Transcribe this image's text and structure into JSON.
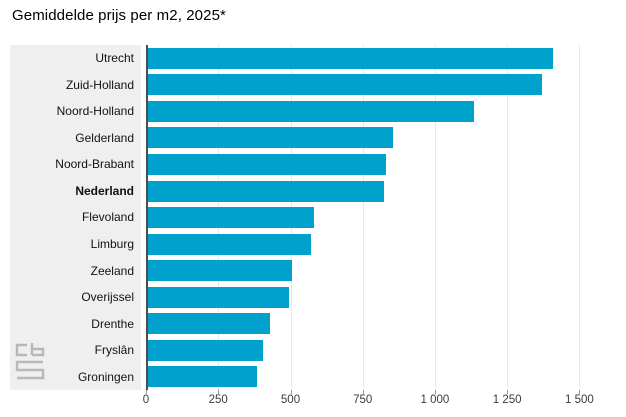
{
  "title": "Gemiddelde prijs per m2, 2025*",
  "chart_data": {
    "type": "bar",
    "orientation": "horizontal",
    "title": "Gemiddelde prijs per m2, 2025*",
    "categories": [
      "Utrecht",
      "Zuid-Holland",
      "Noord-Holland",
      "Gelderland",
      "Noord-Brabant",
      "Nederland",
      "Flevoland",
      "Limburg",
      "Zeeland",
      "Overijssel",
      "Drenthe",
      "Fryslân",
      "Groningen"
    ],
    "values": [
      1410,
      1370,
      1135,
      855,
      830,
      825,
      580,
      570,
      505,
      495,
      430,
      405,
      385
    ],
    "emphasized_category": "Nederland",
    "xlabel": "",
    "ylabel": "",
    "xlim": [
      0,
      1500
    ],
    "x_ticks": [
      0,
      250,
      500,
      750,
      1000,
      1250,
      1500
    ],
    "x_tick_labels": [
      "0",
      "250",
      "500",
      "750",
      "1 000",
      "1 250",
      "1 500"
    ],
    "grid": true,
    "legend": false,
    "colors": {
      "bar": "#00a1cd",
      "label_panel_bg": "#efefef",
      "axis_line": "#4d4d4d",
      "gridline": "#e7e7e7",
      "tick_mark": "#999999",
      "logo": "#b8b8b8"
    }
  },
  "logo": {
    "name": "cbs-logo"
  }
}
